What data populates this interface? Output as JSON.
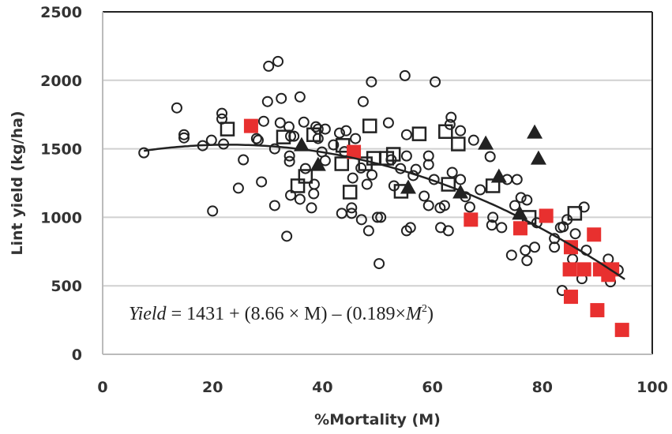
{
  "chart_data": {
    "type": "scatter",
    "xlabel": "%Mortality (M)",
    "ylabel": "Lint yield (kg/ha)",
    "xlim": [
      0,
      100
    ],
    "ylim": [
      0,
      2500
    ],
    "xticks": [
      0,
      20,
      40,
      60,
      80,
      100
    ],
    "yticks": [
      0,
      500,
      1000,
      1500,
      2000,
      2500
    ],
    "grid": "horizontal",
    "legend": "none",
    "annotation": {
      "italic_lead": "Yield",
      "text": " = 1431 + (8.66 × M) – (0.189×",
      "italic_tail": "M",
      "sup": "2",
      "close": ")"
    },
    "trendline": {
      "type": "polynomial",
      "a0": 1431,
      "a1": 8.66,
      "a2": -0.189,
      "x_range": [
        7.5,
        95
      ],
      "color": "#222222"
    },
    "series": [
      {
        "marker": "open-circle",
        "color": "#222222",
        "points": [
          [
            7.5,
            1471
          ],
          [
            13.5,
            1799
          ],
          [
            14.8,
            1603
          ],
          [
            14.8,
            1580
          ],
          [
            18.2,
            1523
          ],
          [
            19.8,
            1563
          ],
          [
            22,
            1535
          ],
          [
            21.7,
            1759
          ],
          [
            21.7,
            1718
          ],
          [
            24.7,
            1213
          ],
          [
            20,
            1046
          ],
          [
            25.6,
            1420
          ],
          [
            28.9,
            1259
          ],
          [
            28,
            1575
          ],
          [
            28.3,
            1563
          ],
          [
            29.3,
            1701
          ],
          [
            30,
            1845
          ],
          [
            32.5,
            1868
          ],
          [
            35.9,
            1879
          ],
          [
            30.2,
            2103
          ],
          [
            31.9,
            2138
          ],
          [
            31.3,
            1086
          ],
          [
            33.5,
            862
          ],
          [
            32.3,
            1690
          ],
          [
            33.9,
            1661
          ],
          [
            36.6,
            1695
          ],
          [
            34.2,
            1592
          ],
          [
            34.8,
            1592
          ],
          [
            31.3,
            1500
          ],
          [
            34,
            1448
          ],
          [
            34,
            1408
          ],
          [
            35.9,
            1132
          ],
          [
            34.2,
            1161
          ],
          [
            38.4,
            1172
          ],
          [
            38,
            1069
          ],
          [
            38.5,
            1241
          ],
          [
            36.9,
            1356
          ],
          [
            38.8,
            1661
          ],
          [
            39.2,
            1644
          ],
          [
            40.5,
            1644
          ],
          [
            39.2,
            1575
          ],
          [
            39.9,
            1477
          ],
          [
            40.5,
            1414
          ],
          [
            43.1,
            1615
          ],
          [
            44.3,
            1632
          ],
          [
            46,
            1575
          ],
          [
            42,
            1529
          ],
          [
            45.5,
            1287
          ],
          [
            48.1,
            1241
          ],
          [
            43.5,
            1029
          ],
          [
            45.3,
            1069
          ],
          [
            45.3,
            1029
          ],
          [
            47.1,
            983
          ],
          [
            48.4,
            902
          ],
          [
            48.9,
            1989
          ],
          [
            47.4,
            1845
          ],
          [
            50,
            1000
          ],
          [
            55,
            2034
          ],
          [
            60.5,
            1989
          ],
          [
            52,
            1690
          ],
          [
            55.3,
            1603
          ],
          [
            63.4,
            1730
          ],
          [
            63.2,
            1678
          ],
          [
            65.1,
            1632
          ],
          [
            67.5,
            1563
          ],
          [
            59.3,
            1448
          ],
          [
            59.3,
            1385
          ],
          [
            70.5,
            1443
          ],
          [
            55.3,
            1448
          ],
          [
            54.2,
            1356
          ],
          [
            56.5,
            1305
          ],
          [
            60.3,
            1276
          ],
          [
            63.6,
            1328
          ],
          [
            65.1,
            1276
          ],
          [
            75.4,
            1276
          ],
          [
            73.6,
            1276
          ],
          [
            68.7,
            1201
          ],
          [
            58.5,
            1155
          ],
          [
            59.3,
            1086
          ],
          [
            61.4,
            1069
          ],
          [
            62.2,
            1086
          ],
          [
            66.8,
            1075
          ],
          [
            50.6,
            1000
          ],
          [
            56,
            925
          ],
          [
            55.3,
            902
          ],
          [
            61.5,
            925
          ],
          [
            62.9,
            902
          ],
          [
            70.8,
            943
          ],
          [
            72.6,
            925
          ],
          [
            75,
            1086
          ],
          [
            76.1,
            1144
          ],
          [
            77.2,
            1126
          ],
          [
            83.3,
            925
          ],
          [
            82.2,
            845
          ],
          [
            87.6,
            1075
          ],
          [
            84.5,
            983
          ],
          [
            74.4,
            724
          ],
          [
            77.2,
            684
          ],
          [
            76.9,
            759
          ],
          [
            78.6,
            782
          ],
          [
            82.2,
            782
          ],
          [
            83.8,
            931
          ],
          [
            92,
            695
          ],
          [
            93.8,
            615
          ],
          [
            87.2,
            552
          ],
          [
            92.4,
            529
          ],
          [
            83.6,
            466
          ],
          [
            85.5,
            695
          ],
          [
            50.3,
            662
          ],
          [
            52.5,
            1420
          ],
          [
            57,
            1350
          ],
          [
            53,
            1230
          ],
          [
            49,
            1310
          ],
          [
            44,
            1480
          ],
          [
            47,
            1360
          ],
          [
            66,
            1150
          ],
          [
            71,
            1000
          ],
          [
            79,
            960
          ],
          [
            86,
            880
          ],
          [
            88,
            760
          ]
        ]
      },
      {
        "marker": "open-square",
        "color": "#222222",
        "points": [
          [
            22.7,
            1644
          ],
          [
            32.9,
            1586
          ],
          [
            38.4,
            1603
          ],
          [
            43.5,
            1391
          ],
          [
            36.9,
            1299
          ],
          [
            35.5,
            1230
          ],
          [
            45,
            1184
          ],
          [
            48.6,
            1667
          ],
          [
            47.8,
            1391
          ],
          [
            57.6,
            1609
          ],
          [
            62.4,
            1626
          ],
          [
            64.7,
            1535
          ],
          [
            52.9,
            1460
          ],
          [
            51.7,
            1431
          ],
          [
            49.3,
            1431
          ],
          [
            54.3,
            1190
          ],
          [
            62.9,
            1241
          ],
          [
            71,
            1230
          ],
          [
            77.6,
            1000
          ],
          [
            85.9,
            1029
          ],
          [
            43.7,
            1525
          ]
        ]
      },
      {
        "marker": "filled-triangle",
        "color": "#222222",
        "points": [
          [
            36.2,
            1529
          ],
          [
            39.2,
            1385
          ],
          [
            69.7,
            1540
          ],
          [
            78.6,
            1621
          ],
          [
            79.3,
            1431
          ],
          [
            72.1,
            1299
          ],
          [
            55.6,
            1218
          ],
          [
            65.1,
            1184
          ],
          [
            75.9,
            1029
          ]
        ]
      },
      {
        "marker": "filled-square",
        "color": "#e8302f",
        "points": [
          [
            27,
            1667
          ],
          [
            45.7,
            1477
          ],
          [
            67,
            983
          ],
          [
            76,
            920
          ],
          [
            80.7,
            1011
          ],
          [
            89.4,
            874
          ],
          [
            85.2,
            782
          ],
          [
            85,
            620
          ],
          [
            87.6,
            620
          ],
          [
            90.5,
            620
          ],
          [
            92.7,
            620
          ],
          [
            92,
            580
          ],
          [
            85.2,
            420
          ],
          [
            90,
            322
          ],
          [
            94.5,
            178
          ]
        ]
      }
    ]
  }
}
